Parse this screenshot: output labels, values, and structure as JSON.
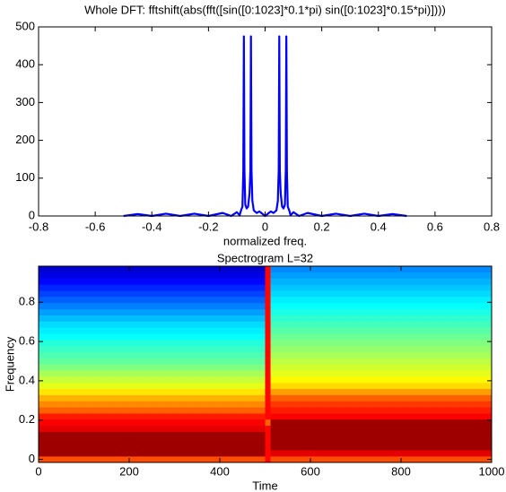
{
  "chart_data": [
    {
      "type": "line",
      "title": "Whole DFT: fftshift(abs(fft([sin([0:1023]*0.1*pi) sin([0:1023]*0.15*pi)])))",
      "x_label": "normalized freq.",
      "x": [
        -0.5,
        -0.45,
        -0.4,
        -0.35,
        -0.3,
        -0.25,
        -0.2,
        -0.15,
        -0.12,
        -0.1,
        -0.09,
        -0.085,
        -0.08,
        -0.077,
        -0.075,
        -0.073,
        -0.07,
        -0.065,
        -0.06,
        -0.055,
        -0.052,
        -0.05,
        -0.048,
        -0.045,
        -0.04,
        -0.03,
        -0.02,
        0,
        0.02,
        0.03,
        0.04,
        0.045,
        0.048,
        0.05,
        0.052,
        0.055,
        0.06,
        0.065,
        0.07,
        0.073,
        0.075,
        0.077,
        0.08,
        0.085,
        0.09,
        0.1,
        0.12,
        0.15,
        0.2,
        0.25,
        0.3,
        0.35,
        0.4,
        0.45,
        0.5
      ],
      "series": [
        {
          "color": "#0000ff",
          "values": [
            0,
            5,
            0,
            6,
            0,
            6,
            0,
            8,
            0,
            10,
            2,
            15,
            25,
            120,
            475,
            120,
            30,
            20,
            25,
            60,
            120,
            475,
            120,
            40,
            15,
            8,
            12,
            0,
            12,
            8,
            15,
            40,
            120,
            475,
            120,
            60,
            25,
            20,
            30,
            120,
            475,
            120,
            25,
            15,
            2,
            10,
            0,
            8,
            0,
            6,
            0,
            6,
            0,
            5,
            0
          ]
        }
      ],
      "xlim": [
        -0.8,
        0.8
      ],
      "xticks": [
        -0.8,
        -0.6,
        -0.4,
        -0.2,
        0,
        0.2,
        0.4,
        0.6,
        0.8
      ],
      "ylim": [
        0,
        500
      ],
      "yticks": [
        0,
        100,
        200,
        300,
        400,
        500
      ]
    },
    {
      "type": "heatmap",
      "title": "Spectrogram L=32",
      "x_label": "Time",
      "y_label": "Frequency",
      "colormap": "jet",
      "clim": [
        0,
        1
      ],
      "x_edges": [
        0,
        500,
        512,
        1000
      ],
      "y": [
        0,
        0.031,
        0.063,
        0.094,
        0.125,
        0.156,
        0.188,
        0.219,
        0.25,
        0.281,
        0.313,
        0.344,
        0.375,
        0.406,
        0.438,
        0.469,
        0.5,
        0.531,
        0.563,
        0.594,
        0.625,
        0.656,
        0.688,
        0.719,
        0.75,
        0.781,
        0.813,
        0.844,
        0.875,
        0.906,
        0.938,
        0.969
      ],
      "z": [
        [
          0.8,
          0.97,
          0.97,
          0.97,
          0.97,
          0.9,
          0.88,
          0.85,
          0.78,
          0.74,
          0.7,
          0.65,
          0.6,
          0.57,
          0.54,
          0.5,
          0.47,
          0.45,
          0.43,
          0.41,
          0.38,
          0.36,
          0.34,
          0.31,
          0.28,
          0.25,
          0.22,
          0.19,
          0.16,
          0.13,
          0.1,
          0.08
        ],
        [
          0.87,
          0.87,
          0.87,
          0.87,
          0.87,
          0.87,
          0.78,
          0.87,
          0.87,
          0.87,
          0.87,
          0.87,
          0.87,
          0.87,
          0.87,
          0.87,
          0.87,
          0.87,
          0.87,
          0.87,
          0.87,
          0.87,
          0.87,
          0.87,
          0.87,
          0.87,
          0.87,
          0.87,
          0.87,
          0.87,
          0.87,
          0.87
        ],
        [
          0.8,
          0.9,
          0.97,
          0.97,
          0.97,
          0.97,
          0.97,
          0.88,
          0.85,
          0.82,
          0.78,
          0.72,
          0.66,
          0.63,
          0.6,
          0.58,
          0.56,
          0.54,
          0.52,
          0.5,
          0.48,
          0.46,
          0.44,
          0.42,
          0.4,
          0.38,
          0.36,
          0.34,
          0.32,
          0.3,
          0.28,
          0.26
        ]
      ],
      "xlim": [
        0,
        1000
      ],
      "xticks": [
        0,
        200,
        400,
        600,
        800,
        1000
      ],
      "ylim": [
        -0.016,
        0.984
      ],
      "yticks": [
        0,
        0.2,
        0.4,
        0.6,
        0.8
      ]
    }
  ]
}
